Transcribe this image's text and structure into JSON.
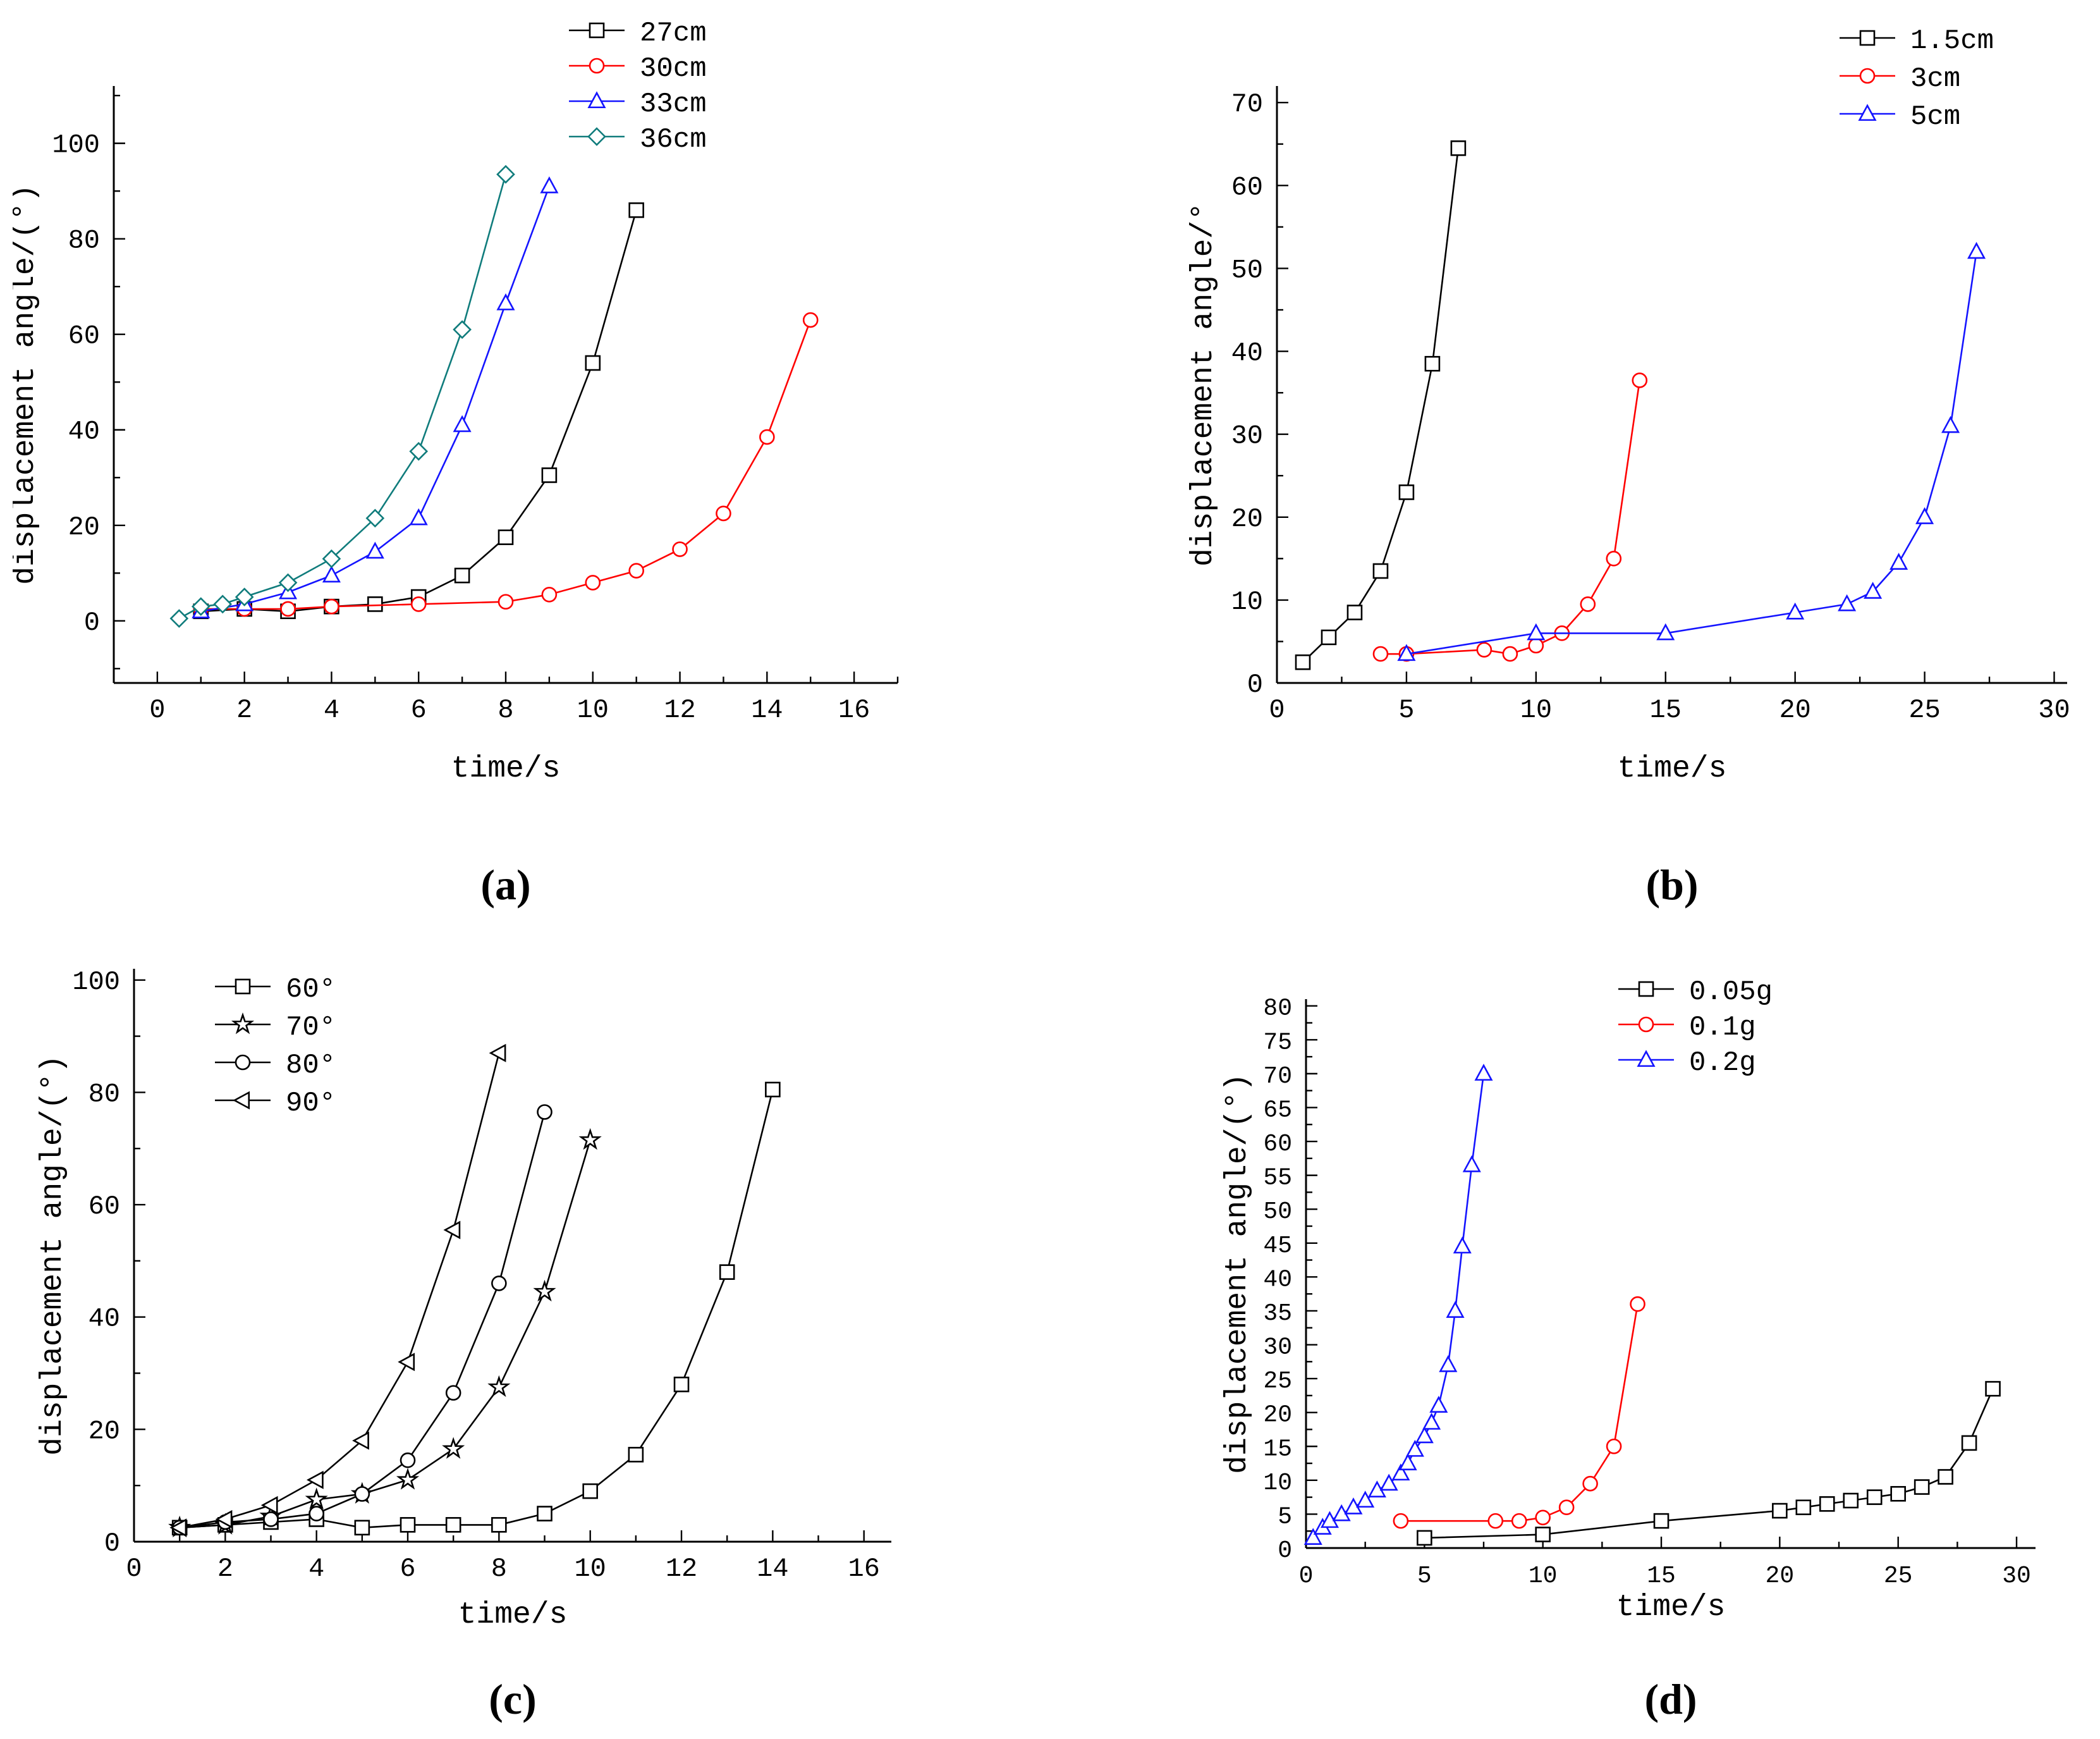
{
  "figure": {
    "background": "#ffffff"
  },
  "captions": [
    "(a)",
    "(b)",
    "(c)",
    "(d)"
  ],
  "chart_data": [
    {
      "id": "a",
      "type": "line",
      "xlabel": "time/s",
      "ylabel": "displacement angle/(°)",
      "xlim": [
        -1,
        17
      ],
      "ylim": [
        -13,
        112
      ],
      "xticks": [
        0,
        2,
        4,
        6,
        8,
        10,
        12,
        14,
        16
      ],
      "yticks": [
        0,
        20,
        40,
        60,
        80,
        100
      ],
      "xminor": 1,
      "yminor": 10,
      "legend_pos": "top-right",
      "series": [
        {
          "name": "27cm",
          "color": "#000000",
          "marker": "square",
          "points": [
            [
              1,
              2
            ],
            [
              2,
              2.5
            ],
            [
              3,
              2
            ],
            [
              4,
              3
            ],
            [
              5,
              3.5
            ],
            [
              6,
              5
            ],
            [
              7,
              9.5
            ],
            [
              8,
              17.5
            ],
            [
              9,
              30.5
            ],
            [
              10,
              54
            ],
            [
              11,
              86
            ]
          ]
        },
        {
          "name": "30cm",
          "color": "#ff0000",
          "marker": "circle",
          "points": [
            [
              1,
              2.5
            ],
            [
              2,
              2.5
            ],
            [
              3,
              2.5
            ],
            [
              4,
              3
            ],
            [
              6,
              3.5
            ],
            [
              8,
              4
            ],
            [
              9,
              5.5
            ],
            [
              10,
              8
            ],
            [
              11,
              10.5
            ],
            [
              12,
              15
            ],
            [
              13,
              22.5
            ],
            [
              14,
              38.5
            ],
            [
              15,
              63
            ]
          ]
        },
        {
          "name": "33cm",
          "color": "#1414ff",
          "marker": "triangle-up",
          "points": [
            [
              1,
              2
            ],
            [
              2,
              3.5
            ],
            [
              3,
              6
            ],
            [
              4,
              9.5
            ],
            [
              5,
              14.5
            ],
            [
              6,
              21.5
            ],
            [
              7,
              41
            ],
            [
              8,
              66.5
            ],
            [
              9,
              91
            ]
          ]
        },
        {
          "name": "36cm",
          "color": "#107c7c",
          "marker": "diamond",
          "points": [
            [
              0.5,
              0.5
            ],
            [
              1,
              3
            ],
            [
              1.5,
              3.5
            ],
            [
              2,
              5
            ],
            [
              3,
              8
            ],
            [
              4,
              13
            ],
            [
              5,
              21.5
            ],
            [
              6,
              35.5
            ],
            [
              7,
              61
            ],
            [
              8,
              93.5
            ]
          ]
        }
      ]
    },
    {
      "id": "b",
      "type": "line",
      "xlabel": "time/s",
      "ylabel": "displacement angle/°",
      "xlim": [
        0,
        30.5
      ],
      "ylim": [
        0,
        72
      ],
      "xticks": [
        0,
        5,
        10,
        15,
        20,
        25,
        30
      ],
      "yticks": [
        0,
        10,
        20,
        30,
        40,
        50,
        60,
        70
      ],
      "xminor": 2.5,
      "yminor": 5,
      "legend_pos": "top-right",
      "series": [
        {
          "name": "1.5cm",
          "color": "#000000",
          "marker": "square",
          "points": [
            [
              1,
              2.5
            ],
            [
              2,
              5.5
            ],
            [
              3,
              8.5
            ],
            [
              4,
              13.5
            ],
            [
              5,
              23
            ],
            [
              6,
              38.5
            ],
            [
              7,
              64.5
            ]
          ]
        },
        {
          "name": "3cm",
          "color": "#ff0000",
          "marker": "circle",
          "points": [
            [
              4,
              3.5
            ],
            [
              5,
              3.5
            ],
            [
              8,
              4
            ],
            [
              9,
              3.5
            ],
            [
              10,
              4.5
            ],
            [
              11,
              6
            ],
            [
              12,
              9.5
            ],
            [
              13,
              15
            ],
            [
              14,
              36.5
            ]
          ]
        },
        {
          "name": "5cm",
          "color": "#1414ff",
          "marker": "triangle-up",
          "points": [
            [
              5,
              3.5
            ],
            [
              10,
              6
            ],
            [
              15,
              6
            ],
            [
              20,
              8.5
            ],
            [
              22,
              9.5
            ],
            [
              23,
              11
            ],
            [
              24,
              14.5
            ],
            [
              25,
              20
            ],
            [
              26,
              31
            ],
            [
              27,
              52
            ]
          ]
        }
      ]
    },
    {
      "id": "c",
      "type": "line",
      "xlabel": "time/s",
      "ylabel": "displacement angle/(°)",
      "xlim": [
        0,
        16.6
      ],
      "ylim": [
        0,
        102
      ],
      "xticks": [
        0,
        2,
        4,
        6,
        8,
        10,
        12,
        14,
        16
      ],
      "yticks": [
        0,
        20,
        40,
        60,
        80,
        100
      ],
      "xminor": 1,
      "yminor": 10,
      "legend_pos": "top-left",
      "series": [
        {
          "name": "60°",
          "color": "#000000",
          "marker": "square",
          "points": [
            [
              1,
              2.5
            ],
            [
              2,
              3
            ],
            [
              3,
              3.5
            ],
            [
              4,
              4
            ],
            [
              5,
              2.5
            ],
            [
              6,
              3
            ],
            [
              7,
              3
            ],
            [
              8,
              3
            ],
            [
              9,
              5
            ],
            [
              10,
              9
            ],
            [
              11,
              15.5
            ],
            [
              12,
              28
            ],
            [
              13,
              48
            ],
            [
              14,
              80.5
            ]
          ]
        },
        {
          "name": "70°",
          "color": "#000000",
          "marker": "star",
          "points": [
            [
              1,
              2.5
            ],
            [
              2,
              3
            ],
            [
              3,
              4.5
            ],
            [
              4,
              7.5
            ],
            [
              5,
              8.5
            ],
            [
              6,
              11
            ],
            [
              7,
              16.5
            ],
            [
              8,
              27.5
            ],
            [
              9,
              44.5
            ],
            [
              10,
              71.5
            ]
          ]
        },
        {
          "name": "80°",
          "color": "#000000",
          "marker": "circle",
          "points": [
            [
              1,
              2.5
            ],
            [
              2,
              3.5
            ],
            [
              3,
              4
            ],
            [
              4,
              5
            ],
            [
              5,
              8.5
            ],
            [
              6,
              14.5
            ],
            [
              7,
              26.5
            ],
            [
              8,
              46
            ],
            [
              9,
              76.5
            ]
          ]
        },
        {
          "name": "90°",
          "color": "#000000",
          "marker": "triangle-left",
          "points": [
            [
              1,
              2.5
            ],
            [
              2,
              4
            ],
            [
              3,
              6.5
            ],
            [
              4,
              11
            ],
            [
              5,
              18
            ],
            [
              6,
              32
            ],
            [
              7,
              55.5
            ],
            [
              8,
              87
            ]
          ]
        }
      ]
    },
    {
      "id": "d",
      "type": "line",
      "xlabel": "time/s",
      "ylabel": "displacement angle/(°)",
      "xlim": [
        0,
        30.8
      ],
      "ylim": [
        0,
        81
      ],
      "xticks": [
        0,
        5,
        10,
        15,
        20,
        25,
        30
      ],
      "yticks": [
        0,
        5,
        10,
        15,
        20,
        25,
        30,
        35,
        40,
        45,
        50,
        55,
        60,
        65,
        70,
        75,
        80
      ],
      "xminor": 2.5,
      "yminor": 2.5,
      "legend_pos": "top-right",
      "series": [
        {
          "name": "0.05g",
          "color": "#000000",
          "marker": "square",
          "points": [
            [
              5,
              1.5
            ],
            [
              10,
              2
            ],
            [
              15,
              4
            ],
            [
              20,
              5.5
            ],
            [
              21,
              6
            ],
            [
              22,
              6.5
            ],
            [
              23,
              7
            ],
            [
              24,
              7.5
            ],
            [
              25,
              8
            ],
            [
              26,
              9
            ],
            [
              27,
              10.5
            ],
            [
              28,
              15.5
            ],
            [
              29,
              23.5
            ]
          ]
        },
        {
          "name": "0.1g",
          "color": "#ff0000",
          "marker": "circle",
          "points": [
            [
              4,
              4
            ],
            [
              8,
              4
            ],
            [
              9,
              4
            ],
            [
              10,
              4.5
            ],
            [
              11,
              6
            ],
            [
              12,
              9.5
            ],
            [
              13,
              15
            ],
            [
              14,
              36
            ]
          ]
        },
        {
          "name": "0.2g",
          "color": "#1414ff",
          "marker": "triangle-up",
          "points": [
            [
              0.3,
              1.5
            ],
            [
              0.7,
              3
            ],
            [
              1,
              4
            ],
            [
              1.5,
              5
            ],
            [
              2,
              6
            ],
            [
              2.5,
              7
            ],
            [
              3,
              8.5
            ],
            [
              3.5,
              9.5
            ],
            [
              4,
              11
            ],
            [
              4.3,
              12.5
            ],
            [
              4.6,
              14.5
            ],
            [
              5,
              16.5
            ],
            [
              5.3,
              18.5
            ],
            [
              5.6,
              21
            ],
            [
              6,
              27
            ],
            [
              6.3,
              35
            ],
            [
              6.6,
              44.5
            ],
            [
              7,
              56.5
            ],
            [
              7.5,
              70
            ]
          ]
        }
      ]
    }
  ]
}
